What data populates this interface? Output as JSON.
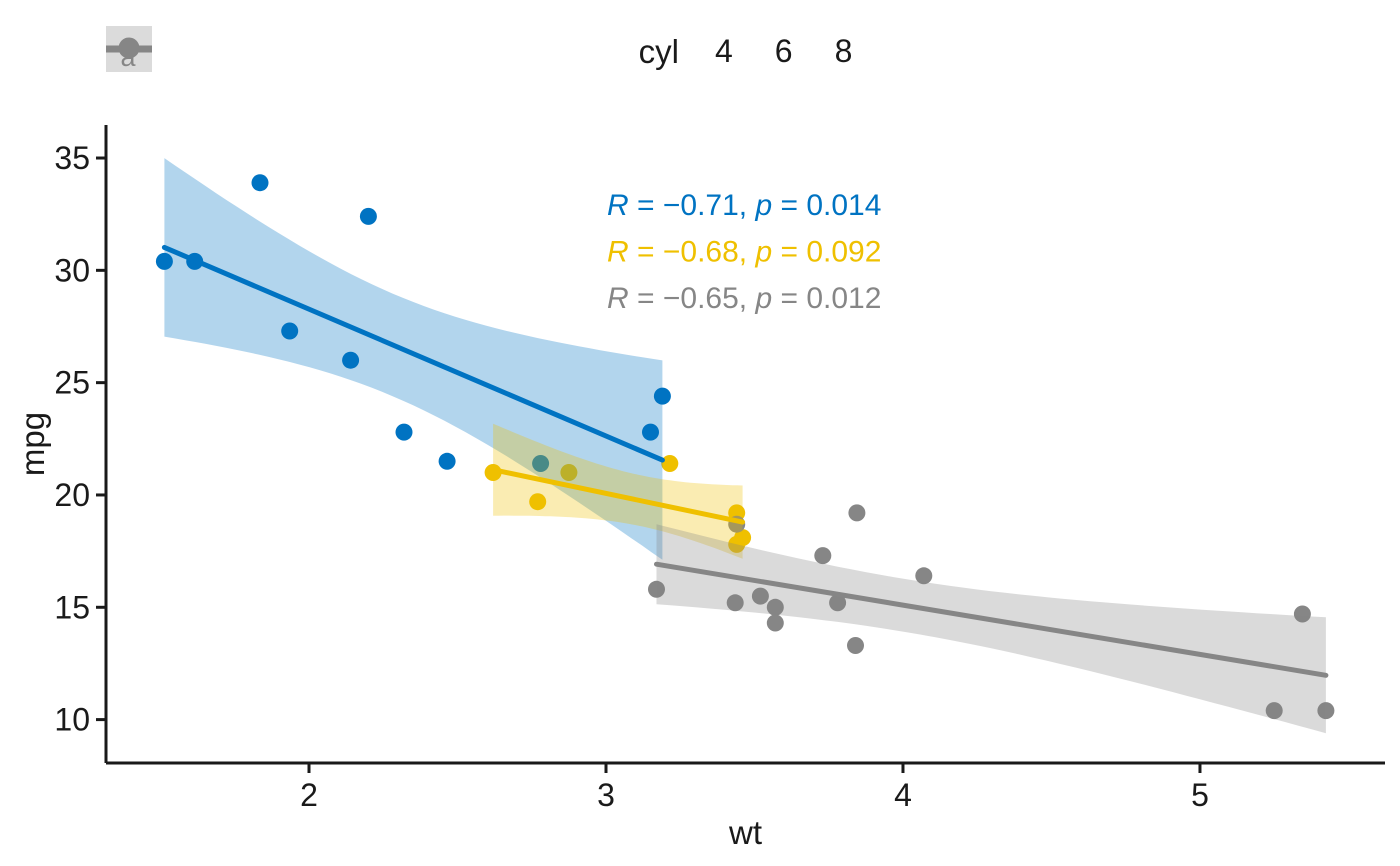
{
  "figure": {
    "background": "#ffffff"
  },
  "legend": {
    "title": "cyl",
    "position": "top",
    "entries": [
      {
        "label": "4",
        "color": "#0073C2",
        "key_fill": "#B3D5EC"
      },
      {
        "label": "6",
        "color": "#EFC000",
        "key_fill": "#FAECB3"
      },
      {
        "label": "8",
        "color": "#868686",
        "key_fill": "#DBDBDB"
      }
    ]
  },
  "annotations": [
    {
      "text": "R = −0.71, p = 0.014",
      "color": "#0073C2"
    },
    {
      "text": "R = −0.68, p = 0.092",
      "color": "#EFC000"
    },
    {
      "text": "R = −0.65, p = 0.012",
      "color": "#868686"
    }
  ],
  "chart_data": {
    "type": "scatter",
    "title": "",
    "xlabel": "wt",
    "ylabel": "mpg",
    "xlim": [
      1.3165,
      5.623
    ],
    "ylim": [
      8.068,
      36.47
    ],
    "x_ticks": [
      2,
      3,
      4,
      5
    ],
    "y_ticks": [
      10,
      15,
      20,
      25,
      30,
      35
    ],
    "grid": false,
    "legend_position": "top",
    "band_alpha": 0.3,
    "series": [
      {
        "name": "4",
        "color": "#0073C2",
        "points": [
          [
            2.32,
            22.8
          ],
          [
            3.19,
            24.4
          ],
          [
            3.15,
            22.8
          ],
          [
            2.2,
            32.4
          ],
          [
            1.615,
            30.4
          ],
          [
            1.835,
            33.9
          ],
          [
            2.465,
            21.5
          ],
          [
            1.935,
            27.3
          ],
          [
            2.14,
            26.0
          ],
          [
            1.513,
            30.4
          ],
          [
            2.78,
            21.4
          ]
        ],
        "regression": {
          "slope": -5.647,
          "intercept": 39.566,
          "x_min": 1.513,
          "x_max": 3.19,
          "n": 11,
          "mean_x": 2.2855,
          "sxx": 3.2441,
          "sigma": 3.35,
          "t_crit": 2.262
        },
        "correlation": {
          "R": -0.71,
          "p": 0.014
        }
      },
      {
        "name": "6",
        "color": "#EFC000",
        "points": [
          [
            2.62,
            21.0
          ],
          [
            2.875,
            21.0
          ],
          [
            3.215,
            21.4
          ],
          [
            3.46,
            18.1
          ],
          [
            3.44,
            19.2
          ],
          [
            3.44,
            17.8
          ],
          [
            2.77,
            19.7
          ]
        ],
        "regression": {
          "slope": -2.78,
          "intercept": 28.409,
          "x_min": 2.62,
          "x_max": 3.46,
          "n": 7,
          "mean_x": 3.1171,
          "sxx": 0.7619,
          "sigma": 1.165,
          "t_crit": 2.571
        },
        "correlation": {
          "R": -0.68,
          "p": 0.092
        }
      },
      {
        "name": "8",
        "color": "#868686",
        "points": [
          [
            3.44,
            18.7
          ],
          [
            3.57,
            14.3
          ],
          [
            4.07,
            16.4
          ],
          [
            3.73,
            17.3
          ],
          [
            3.78,
            15.2
          ],
          [
            5.25,
            10.4
          ],
          [
            5.424,
            10.4
          ],
          [
            5.345,
            14.7
          ],
          [
            3.52,
            15.5
          ],
          [
            3.435,
            15.2
          ],
          [
            3.84,
            13.3
          ],
          [
            3.845,
            19.2
          ],
          [
            3.17,
            15.8
          ],
          [
            3.57,
            15.0
          ]
        ],
        "regression": {
          "slope": -2.193,
          "intercept": 23.868,
          "x_min": 3.17,
          "x_max": 5.424,
          "n": 14,
          "mean_x": 3.9992,
          "sxx": 7.497,
          "sigma": 2.024,
          "t_crit": 2.179
        },
        "correlation": {
          "R": -0.65,
          "p": 0.012
        }
      }
    ]
  }
}
